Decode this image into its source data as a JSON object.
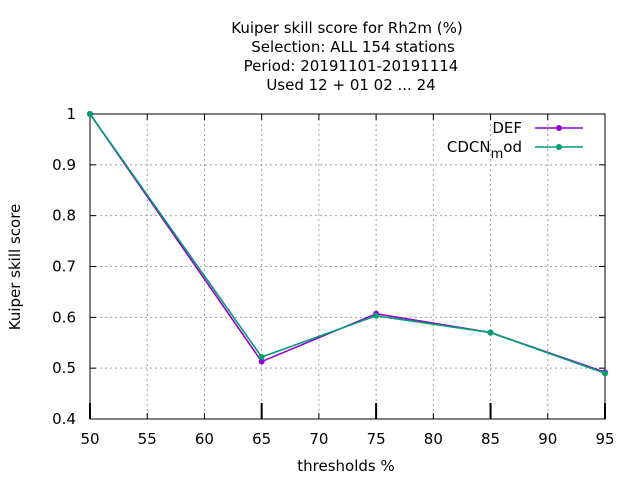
{
  "chart_data": {
    "type": "line",
    "title_lines": [
      "Kuiper skill score  for Rh2m (%)",
      "Selection: ALL    154 stations",
      "Period: 20191101-20191114",
      "Used  12 + 01 02 ... 24"
    ],
    "xlabel": "thresholds %",
    "ylabel": "Kuiper skill score",
    "xlim": [
      50,
      95
    ],
    "ylim": [
      0.4,
      1.0
    ],
    "xticks": [
      50,
      55,
      60,
      65,
      70,
      75,
      80,
      85,
      90,
      95
    ],
    "yticks": [
      0.4,
      0.5,
      0.6,
      0.7,
      0.8,
      0.9,
      1.0
    ],
    "ytick_labels": [
      "0.4",
      "0.5",
      "0.6",
      "0.7",
      "0.8",
      "0.9",
      "1"
    ],
    "grid": true,
    "legend_position": "top-right",
    "x": [
      50,
      65,
      75,
      85,
      95
    ],
    "series": [
      {
        "name": "DEF",
        "color": "#9400d3",
        "values": [
          1.0,
          0.513,
          0.607,
          0.57,
          0.492
        ]
      },
      {
        "name": "CDCN",
        "name_sub": "m",
        "name_suffix": "od",
        "color": "#009e73",
        "values": [
          1.0,
          0.522,
          0.603,
          0.57,
          0.49
        ]
      }
    ]
  }
}
